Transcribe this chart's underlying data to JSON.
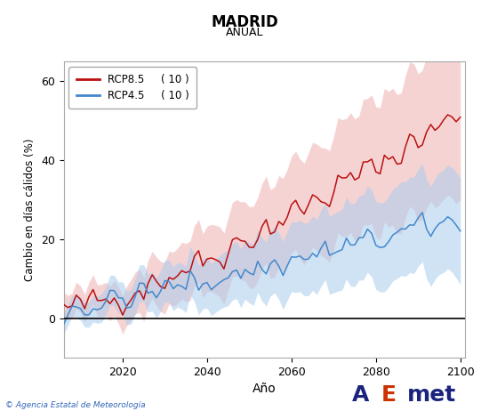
{
  "title": "MADRID",
  "subtitle": "ANUAL",
  "xlabel": "Año",
  "ylabel": "Cambio en días cálidos (%)",
  "xlim": [
    2006,
    2101
  ],
  "ylim": [
    -10,
    65
  ],
  "yticks": [
    0,
    20,
    40,
    60
  ],
  "xticks": [
    2020,
    2040,
    2060,
    2080,
    2100
  ],
  "rcp85_color": "#bb1111",
  "rcp85_fill": "#f0b0b0",
  "rcp45_color": "#4488cc",
  "rcp45_fill": "#a8ccee",
  "legend_label_85": "RCP8.5",
  "legend_label_45": "RCP4.5",
  "legend_n_85": "( 10 )",
  "legend_n_45": "( 10 )",
  "bg_color": "#ffffff",
  "copyright_text": "© Agencia Estatal de Meteorología",
  "seed": 42
}
